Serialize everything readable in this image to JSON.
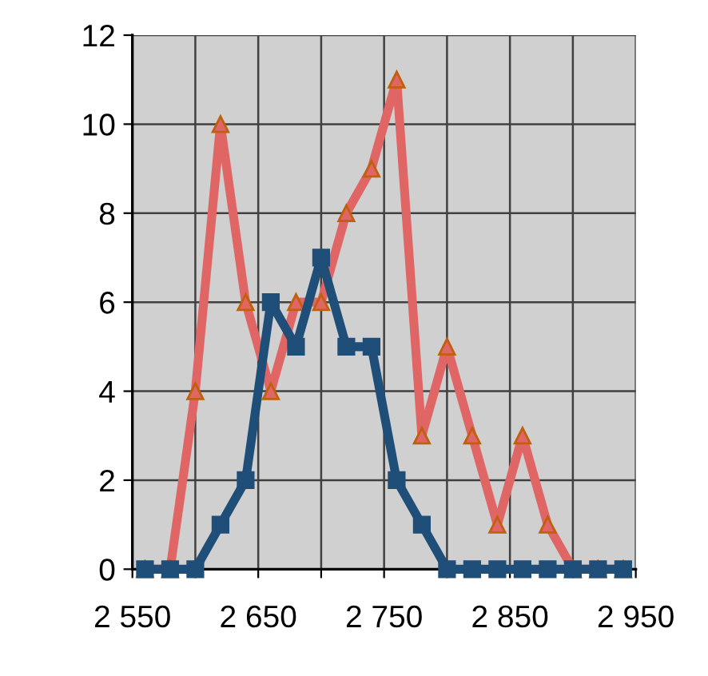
{
  "chart_data": {
    "type": "line",
    "x": [
      2560,
      2580,
      2600,
      2620,
      2640,
      2660,
      2680,
      2700,
      2720,
      2740,
      2760,
      2780,
      2800,
      2820,
      2840,
      2860,
      2880,
      2900,
      2920,
      2940
    ],
    "series": [
      {
        "color": "#e06666",
        "marker": "triangle",
        "values": [
          0,
          0,
          4,
          10,
          6,
          4,
          6,
          6,
          8,
          9,
          11,
          3,
          5,
          3,
          1,
          3,
          1,
          0,
          0,
          0
        ]
      },
      {
        "color": "#1f4e79",
        "marker": "square",
        "values": [
          0,
          0,
          0,
          1,
          2,
          6,
          5,
          7,
          5,
          5,
          2,
          1,
          0,
          0,
          0,
          0,
          0,
          0,
          0,
          0
        ]
      }
    ],
    "xlim": [
      2550,
      2950
    ],
    "xticks": [
      {
        "value": 2550,
        "label": "2 550"
      },
      {
        "value": 2600,
        "label": null
      },
      {
        "value": 2650,
        "label": "2 650"
      },
      {
        "value": 2700,
        "label": null
      },
      {
        "value": 2750,
        "label": "2 750"
      },
      {
        "value": 2800,
        "label": null
      },
      {
        "value": 2850,
        "label": "2 850"
      },
      {
        "value": 2900,
        "label": null
      },
      {
        "value": 2950,
        "label": "2 950"
      }
    ],
    "ylim": [
      0,
      12
    ],
    "yticks": [
      0,
      2,
      4,
      6,
      8,
      10,
      12
    ],
    "grid": true,
    "line_style": "solid"
  }
}
